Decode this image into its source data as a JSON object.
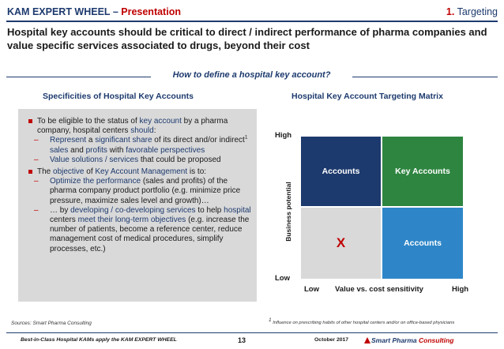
{
  "header": {
    "title": "KAM EXPERT WHEEL",
    "separator": " – ",
    "subtitle": "Presentation",
    "section_number": "1.",
    "section_name": " Targeting"
  },
  "headline": "Hospital key accounts should be critical to direct / indirect performance of pharma companies and value specific services associated to drugs, beyond their cost",
  "question": "How to define a hospital key account?",
  "left_section_title": "Specificities of Hospital Key Accounts",
  "right_section_title": "Hospital Key Account Targeting Matrix",
  "bullets": {
    "b1": {
      "p1": "To be eligible to the status of ",
      "hl1": "key account",
      "p2": " by a pharma company, hospital centers ",
      "hl2": "should",
      "p3": ":"
    },
    "s1": {
      "hl1": "Represent",
      "p1": " a ",
      "hl2": "significant share",
      "p2": " of its direct and/or indirect",
      "sup": "1",
      "p3": " ",
      "hl3": "sales",
      "p4": " and ",
      "hl4": "profits",
      "p5": " with ",
      "hl5": "favorable perspectives"
    },
    "s2": {
      "hl1": "Value solutions / services",
      "p1": " that could be proposed"
    },
    "b2": {
      "p1": "The ",
      "hl1": "objective",
      "p2": " of ",
      "hl2": "Key Account Management",
      "p3": " is to:"
    },
    "s3": {
      "hl1": "Optimize the performance",
      "p1": " (sales and profits) of the pharma company product portfolio (e.g. minimize price pressure, maximize sales level and growth)…"
    },
    "s4": {
      "p1": "… by ",
      "hl1": "developing / co-developing services",
      "p2": " to help ",
      "hl2": "hospital",
      "p3": " centers ",
      "hl3": "meet their long-term objectives",
      "p4": " (e.g. increase the number of patients, become a reference center, reduce management cost of medical procedures, simplify processes, etc.)"
    }
  },
  "matrix": {
    "y_high": "High",
    "y_low": "Low",
    "y_axis_label": "Business potential",
    "x_low": "Low",
    "x_axis_label": "Value vs. cost sensitivity",
    "x_high": "High",
    "cell_top_left": "Accounts",
    "cell_top_right": "Key Accounts",
    "cell_bottom_left": "X",
    "cell_bottom_right": "Accounts",
    "colors": {
      "top_left": "#1d3a6e",
      "top_right": "#2e8540",
      "bottom_left": "#d9d9d9",
      "bottom_right": "#2e86c8"
    }
  },
  "footer": {
    "sources": "Sources: Smart Pharma Consulting",
    "footnote_number": "1",
    "footnote": " Influence on prescribing habits of other hospital centers and/or on office-based physicians",
    "left_text": "Best-in-Class Hospital KAMs apply the KAM EXPERT WHEEL",
    "page_number": "13",
    "date": "October 2017",
    "brand_part1": "Smart Pharma ",
    "brand_part2": "Consulting"
  },
  "colors": {
    "navy": "#1d3a6e",
    "accent_red": "#c00000",
    "panel_grey": "#d9d9d9"
  }
}
